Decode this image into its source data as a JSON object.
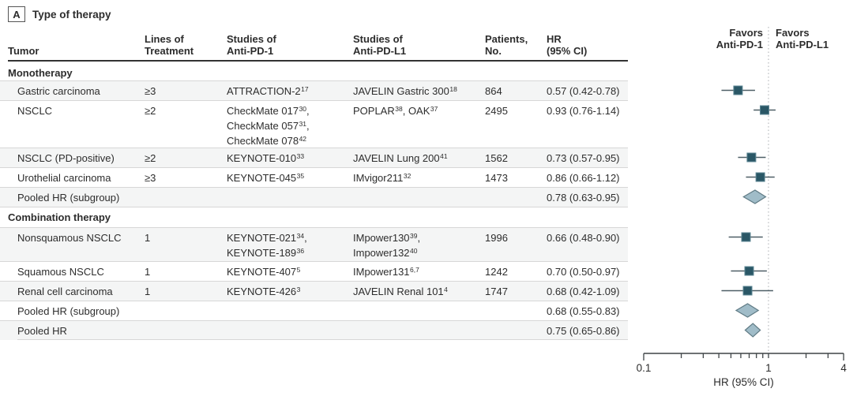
{
  "panel": {
    "label": "A",
    "title": "Type of therapy"
  },
  "columns": {
    "tumor": "Tumor",
    "lines": "Lines of\nTreatment",
    "pd1": "Studies of\nAnti-PD-1",
    "pdl1": "Studies of\nAnti-PD-L1",
    "patients": "Patients,\nNo.",
    "hr": "HR\n(95% CI)"
  },
  "favors": {
    "left": "Favors\nAnti-PD-1",
    "right": "Favors\nAnti-PD-L1"
  },
  "chart_data": {
    "type": "forest",
    "xscale": "log",
    "xlim": [
      0.1,
      4
    ],
    "xticks": [
      0.1,
      0.2,
      0.3,
      0.4,
      0.5,
      0.6,
      0.7,
      0.8,
      0.9,
      1,
      2,
      3,
      4
    ],
    "xtick_labels": [
      {
        "value": 0.1,
        "label": "0.1"
      },
      {
        "value": 1,
        "label": "1"
      },
      {
        "value": 4,
        "label": "4"
      }
    ],
    "xlabel": "HR (95% CI)",
    "reference_line": 1,
    "colors": {
      "square_fill": "#2a5766",
      "square_stroke": "#5e8794",
      "ci_line": "#4e5f66",
      "diamond_fill": "#a0bcc8",
      "diamond_stroke": "#607b85",
      "reference": "#a9adb0",
      "axis": "#3f4447"
    },
    "rows": [
      {
        "kind": "section",
        "tumor": "Monotherapy"
      },
      {
        "kind": "study",
        "tumor": "Gastric carcinoma",
        "lines": "≥3",
        "pd1": [
          "ATTRACTION-2^{17}"
        ],
        "pdl1": [
          "JAVELIN Gastric 300^{18}"
        ],
        "patients": "864",
        "hr_text": "0.57 (0.42-0.78)",
        "hr": 0.57,
        "ci_low": 0.42,
        "ci_high": 0.78
      },
      {
        "kind": "study",
        "tumor": "NSCLC",
        "lines": "≥2",
        "pd1": [
          "CheckMate 017^{30},",
          "CheckMate 057^{31},",
          "CheckMate 078^{42}"
        ],
        "pdl1": [
          "POPLAR^{38}, OAK^{37}"
        ],
        "patients": "2495",
        "hr_text": "0.93 (0.76-1.14)",
        "hr": 0.93,
        "ci_low": 0.76,
        "ci_high": 1.14
      },
      {
        "kind": "study",
        "tumor": "NSCLC (PD-positive)",
        "lines": "≥2",
        "pd1": [
          "KEYNOTE-010^{33}"
        ],
        "pdl1": [
          "JAVELIN Lung 200^{41}"
        ],
        "patients": "1562",
        "hr_text": "0.73 (0.57-0.95)",
        "hr": 0.73,
        "ci_low": 0.57,
        "ci_high": 0.95
      },
      {
        "kind": "study",
        "tumor": "Urothelial carcinoma",
        "lines": "≥3",
        "pd1": [
          "KEYNOTE-045^{35}"
        ],
        "pdl1": [
          "IMvigor211^{32}"
        ],
        "patients": "1473",
        "hr_text": "0.86 (0.66-1.12)",
        "hr": 0.86,
        "ci_low": 0.66,
        "ci_high": 1.12
      },
      {
        "kind": "pooled",
        "tumor": "Pooled HR (subgroup)",
        "hr_text": "0.78 (0.63-0.95)",
        "hr": 0.78,
        "ci_low": 0.63,
        "ci_high": 0.95
      },
      {
        "kind": "section",
        "tumor": "Combination therapy"
      },
      {
        "kind": "study",
        "tumor": "Nonsquamous NSCLC",
        "lines": "1",
        "pd1": [
          "KEYNOTE-021^{34},",
          "KEYNOTE-189^{36}"
        ],
        "pdl1": [
          "IMpower130^{39},",
          "Impower132^{40}"
        ],
        "patients": "1996",
        "hr_text": "0.66 (0.48-0.90)",
        "hr": 0.66,
        "ci_low": 0.48,
        "ci_high": 0.9
      },
      {
        "kind": "study",
        "tumor": "Squamous NSCLC",
        "lines": "1",
        "pd1": [
          "KEYNOTE-407^{5}"
        ],
        "pdl1": [
          "IMpower131^{6,7}"
        ],
        "patients": "1242",
        "hr_text": "0.70 (0.50-0.97)",
        "hr": 0.7,
        "ci_low": 0.5,
        "ci_high": 0.97
      },
      {
        "kind": "study",
        "tumor": "Renal cell carcinoma",
        "lines": "1",
        "pd1": [
          "KEYNOTE-426^{3}"
        ],
        "pdl1": [
          "JAVELIN Renal 101^{4}"
        ],
        "patients": "1747",
        "hr_text": "0.68 (0.42-1.09)",
        "hr": 0.68,
        "ci_low": 0.42,
        "ci_high": 1.09
      },
      {
        "kind": "pooled",
        "tumor": "Pooled HR (subgroup)",
        "hr_text": "0.68 (0.55-0.83)",
        "hr": 0.68,
        "ci_low": 0.55,
        "ci_high": 0.83
      },
      {
        "kind": "pooled",
        "tumor": "Pooled HR",
        "hr_text": "0.75 (0.65-0.86)",
        "hr": 0.75,
        "ci_low": 0.65,
        "ci_high": 0.86
      }
    ]
  }
}
